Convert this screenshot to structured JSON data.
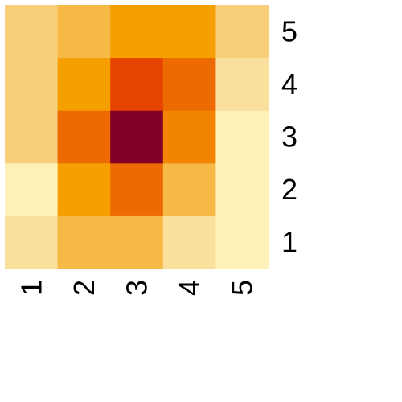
{
  "chart_data": {
    "type": "heatmap",
    "x": [
      "1",
      "2",
      "3",
      "4",
      "5"
    ],
    "y": [
      "1",
      "2",
      "3",
      "4",
      "5"
    ],
    "z": [
      [
        2,
        4,
        4,
        2,
        1
      ],
      [
        1,
        5,
        7,
        4,
        1
      ],
      [
        3,
        7,
        10,
        6,
        1
      ],
      [
        3,
        5,
        8,
        7,
        2
      ],
      [
        3,
        4,
        5,
        5,
        3
      ]
    ],
    "colors": [
      "#FFFFCC",
      "#FFF0B8",
      "#FBDF9D",
      "#F7CF7A",
      "#F6B945",
      "#F5A000",
      "#F28400",
      "#EC6A00",
      "#E54400",
      "#B01C10",
      "#800026"
    ],
    "xlabel": "",
    "ylabel": "",
    "title": ""
  }
}
